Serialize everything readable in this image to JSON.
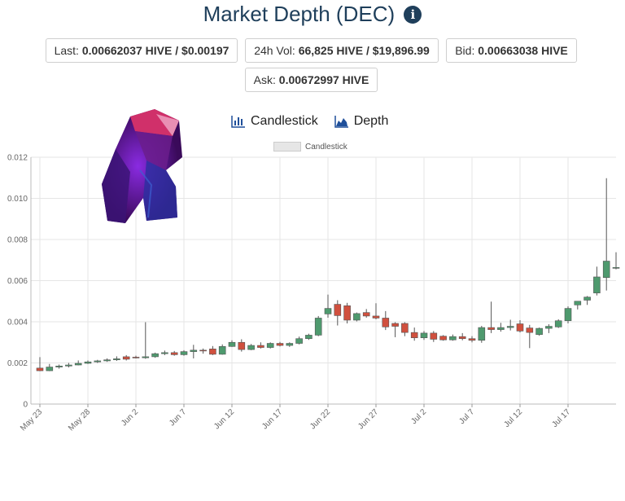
{
  "page": {
    "title": "Market Depth (DEC)"
  },
  "stats": {
    "last_label": "Last:",
    "last_value": "0.00662037 HIVE / $0.00197",
    "vol_label": "24h Vol:",
    "vol_value": "66,825 HIVE / $19,896.99",
    "bid_label": "Bid:",
    "bid_value": "0.00663038 HIVE",
    "ask_label": "Ask:",
    "ask_value": "0.00672997 HIVE"
  },
  "tabs": {
    "candlestick_label": "Candlestick",
    "depth_label": "Depth"
  },
  "colors": {
    "title": "#1f3f5b",
    "up": "#4e9a6e",
    "down": "#d0503e",
    "grid": "#e5e5e5",
    "tab_icon": "#1f4f9a"
  },
  "icons": {
    "info": "info-icon",
    "candlestick": "bar-chart-icon",
    "depth": "area-chart-icon"
  },
  "chart_data": {
    "type": "candlestick",
    "legend": [
      "Candlestick"
    ],
    "legend_position": "top-center",
    "grid": true,
    "ylim": [
      0,
      0.012
    ],
    "yticks": [
      "0",
      "0.002",
      "0.004",
      "0.006",
      "0.008",
      "0.010",
      "0.012"
    ],
    "xticks": [
      "May 23",
      "May 28",
      "Jun 2",
      "Jun 7",
      "Jun 12",
      "Jun 17",
      "Jun 22",
      "Jun 27",
      "Jul 2",
      "Jul 7",
      "Jul 12",
      "Jul 17"
    ],
    "candles": [
      {
        "date": "May 23",
        "open": 0.00175,
        "high": 0.00228,
        "low": 0.0016,
        "close": 0.00162
      },
      {
        "date": "May 24",
        "open": 0.00162,
        "high": 0.00195,
        "low": 0.0016,
        "close": 0.0018
      },
      {
        "date": "May 25",
        "open": 0.0018,
        "high": 0.00192,
        "low": 0.00172,
        "close": 0.00185
      },
      {
        "date": "May 26",
        "open": 0.00185,
        "high": 0.002,
        "low": 0.00178,
        "close": 0.0019
      },
      {
        "date": "May 27",
        "open": 0.0019,
        "high": 0.00212,
        "low": 0.00188,
        "close": 0.00198
      },
      {
        "date": "May 28",
        "open": 0.00198,
        "high": 0.00212,
        "low": 0.00195,
        "close": 0.00205
      },
      {
        "date": "May 29",
        "open": 0.00205,
        "high": 0.00215,
        "low": 0.002,
        "close": 0.0021
      },
      {
        "date": "May 30",
        "open": 0.0021,
        "high": 0.00222,
        "low": 0.00205,
        "close": 0.00215
      },
      {
        "date": "May 31",
        "open": 0.00215,
        "high": 0.00232,
        "low": 0.0021,
        "close": 0.0022
      },
      {
        "date": "Jun 1",
        "open": 0.0023,
        "high": 0.00238,
        "low": 0.00212,
        "close": 0.00218
      },
      {
        "date": "Jun 2",
        "open": 0.00228,
        "high": 0.00235,
        "low": 0.00222,
        "close": 0.00225
      },
      {
        "date": "Jun 3",
        "open": 0.00225,
        "high": 0.00398,
        "low": 0.0022,
        "close": 0.0023
      },
      {
        "date": "Jun 4",
        "open": 0.0023,
        "high": 0.0025,
        "low": 0.00225,
        "close": 0.00245
      },
      {
        "date": "Jun 5",
        "open": 0.00245,
        "high": 0.0026,
        "low": 0.00238,
        "close": 0.0025
      },
      {
        "date": "Jun 6",
        "open": 0.0025,
        "high": 0.00258,
        "low": 0.00235,
        "close": 0.0024
      },
      {
        "date": "Jun 7",
        "open": 0.0024,
        "high": 0.00262,
        "low": 0.00235,
        "close": 0.00255
      },
      {
        "date": "Jun 8",
        "open": 0.00255,
        "high": 0.00288,
        "low": 0.00222,
        "close": 0.00262
      },
      {
        "date": "Jun 9",
        "open": 0.00262,
        "high": 0.0027,
        "low": 0.00245,
        "close": 0.00258
      },
      {
        "date": "Jun 10",
        "open": 0.00268,
        "high": 0.00282,
        "low": 0.00238,
        "close": 0.00242
      },
      {
        "date": "Jun 11",
        "open": 0.00242,
        "high": 0.0029,
        "low": 0.0024,
        "close": 0.0028
      },
      {
        "date": "Jun 12",
        "open": 0.0028,
        "high": 0.0031,
        "low": 0.00278,
        "close": 0.003
      },
      {
        "date": "Jun 13",
        "open": 0.003,
        "high": 0.00315,
        "low": 0.00255,
        "close": 0.00265
      },
      {
        "date": "Jun 14",
        "open": 0.00265,
        "high": 0.00292,
        "low": 0.00262,
        "close": 0.00285
      },
      {
        "date": "Jun 15",
        "open": 0.00285,
        "high": 0.003,
        "low": 0.0027,
        "close": 0.00275
      },
      {
        "date": "Jun 16",
        "open": 0.00275,
        "high": 0.003,
        "low": 0.0027,
        "close": 0.00295
      },
      {
        "date": "Jun 17",
        "open": 0.00295,
        "high": 0.00302,
        "low": 0.0028,
        "close": 0.00285
      },
      {
        "date": "Jun 18",
        "open": 0.00285,
        "high": 0.003,
        "low": 0.00278,
        "close": 0.00295
      },
      {
        "date": "Jun 19",
        "open": 0.00295,
        "high": 0.00328,
        "low": 0.0029,
        "close": 0.00318
      },
      {
        "date": "Jun 20",
        "open": 0.00318,
        "high": 0.00342,
        "low": 0.00312,
        "close": 0.00335
      },
      {
        "date": "Jun 21",
        "open": 0.00335,
        "high": 0.00428,
        "low": 0.0033,
        "close": 0.00418
      },
      {
        "date": "Jun 22",
        "open": 0.00438,
        "high": 0.00532,
        "low": 0.0042,
        "close": 0.00465
      },
      {
        "date": "Jun 23",
        "open": 0.00485,
        "high": 0.00505,
        "low": 0.00382,
        "close": 0.0043
      },
      {
        "date": "Jun 24",
        "open": 0.00478,
        "high": 0.00492,
        "low": 0.00392,
        "close": 0.00408
      },
      {
        "date": "Jun 25",
        "open": 0.00408,
        "high": 0.00445,
        "low": 0.00402,
        "close": 0.0044
      },
      {
        "date": "Jun 26",
        "open": 0.00445,
        "high": 0.00462,
        "low": 0.0042,
        "close": 0.00428
      },
      {
        "date": "Jun 27",
        "open": 0.00428,
        "high": 0.0049,
        "low": 0.00412,
        "close": 0.00418
      },
      {
        "date": "Jun 28",
        "open": 0.00418,
        "high": 0.00452,
        "low": 0.0036,
        "close": 0.00375
      },
      {
        "date": "Jun 29",
        "open": 0.00392,
        "high": 0.00398,
        "low": 0.00325,
        "close": 0.00378
      },
      {
        "date": "Jun 30",
        "open": 0.00392,
        "high": 0.00398,
        "low": 0.0033,
        "close": 0.00348
      },
      {
        "date": "Jul 1",
        "open": 0.00348,
        "high": 0.00372,
        "low": 0.00308,
        "close": 0.00322
      },
      {
        "date": "Jul 2",
        "open": 0.00322,
        "high": 0.00355,
        "low": 0.00312,
        "close": 0.00345
      },
      {
        "date": "Jul 3",
        "open": 0.00345,
        "high": 0.00355,
        "low": 0.00302,
        "close": 0.00315
      },
      {
        "date": "Jul 4",
        "open": 0.0033,
        "high": 0.00335,
        "low": 0.00308,
        "close": 0.00312
      },
      {
        "date": "Jul 5",
        "open": 0.00312,
        "high": 0.00338,
        "low": 0.00308,
        "close": 0.00328
      },
      {
        "date": "Jul 6",
        "open": 0.00328,
        "high": 0.00345,
        "low": 0.0031,
        "close": 0.00318
      },
      {
        "date": "Jul 7",
        "open": 0.00318,
        "high": 0.0033,
        "low": 0.003,
        "close": 0.0031
      },
      {
        "date": "Jul 8",
        "open": 0.0031,
        "high": 0.0038,
        "low": 0.00298,
        "close": 0.00372
      },
      {
        "date": "Jul 9",
        "open": 0.00372,
        "high": 0.00498,
        "low": 0.00345,
        "close": 0.00362
      },
      {
        "date": "Jul 10",
        "open": 0.00362,
        "high": 0.00395,
        "low": 0.00352,
        "close": 0.00372
      },
      {
        "date": "Jul 11",
        "open": 0.00372,
        "high": 0.0041,
        "low": 0.00358,
        "close": 0.00378
      },
      {
        "date": "Jul 12",
        "open": 0.0039,
        "high": 0.00408,
        "low": 0.00348,
        "close": 0.00355
      },
      {
        "date": "Jul 13",
        "open": 0.0037,
        "high": 0.00385,
        "low": 0.00272,
        "close": 0.00348
      },
      {
        "date": "Jul 14",
        "open": 0.00338,
        "high": 0.00372,
        "low": 0.00332,
        "close": 0.00368
      },
      {
        "date": "Jul 15",
        "open": 0.00368,
        "high": 0.00388,
        "low": 0.00345,
        "close": 0.00378
      },
      {
        "date": "Jul 16",
        "open": 0.00375,
        "high": 0.00412,
        "low": 0.0037,
        "close": 0.00405
      },
      {
        "date": "Jul 17",
        "open": 0.00405,
        "high": 0.00475,
        "low": 0.00392,
        "close": 0.00465
      },
      {
        "date": "Jul 18",
        "open": 0.00482,
        "high": 0.005,
        "low": 0.0046,
        "close": 0.005
      },
      {
        "date": "Jul 19",
        "open": 0.00505,
        "high": 0.00525,
        "low": 0.00482,
        "close": 0.0052
      },
      {
        "date": "Jul 20",
        "open": 0.0054,
        "high": 0.00668,
        "low": 0.00528,
        "close": 0.00618
      },
      {
        "date": "Jul 21",
        "open": 0.00615,
        "high": 0.01098,
        "low": 0.00552,
        "close": 0.00695
      },
      {
        "date": "Jul 22",
        "open": 0.00662,
        "high": 0.00738,
        "low": 0.00655,
        "close": 0.00664
      }
    ]
  }
}
